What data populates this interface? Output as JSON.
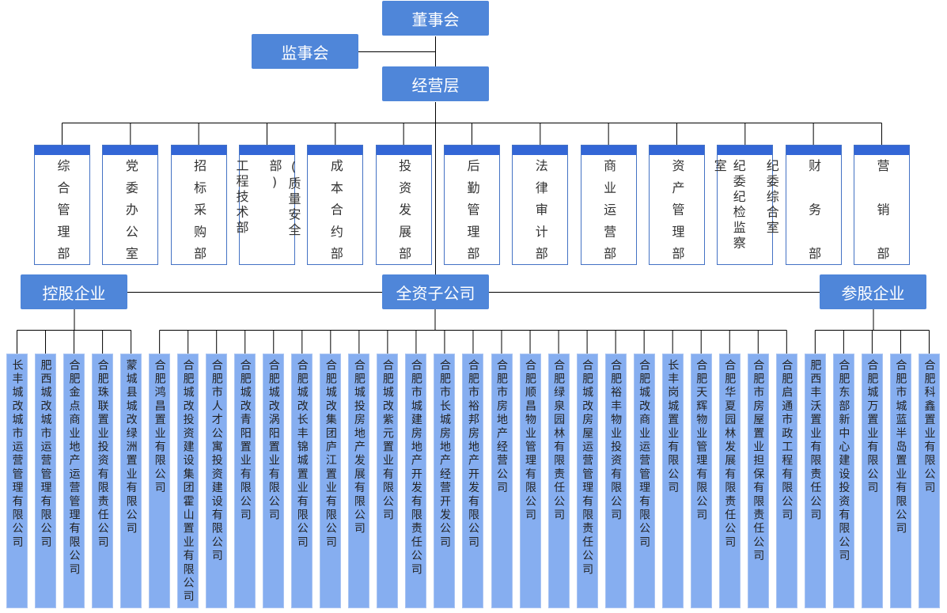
{
  "board": {
    "label": "董事会"
  },
  "supervisors": {
    "label": "监事会"
  },
  "management": {
    "label": "经营层"
  },
  "departments": [
    {
      "columns": [
        "综合管理部"
      ]
    },
    {
      "columns": [
        "党委办公室"
      ]
    },
    {
      "columns": [
        "招标采购部"
      ]
    },
    {
      "columns": [
        "工程技术部",
        "(质量安全部)"
      ]
    },
    {
      "columns": [
        "成本合约部"
      ]
    },
    {
      "columns": [
        "投资发展部"
      ]
    },
    {
      "columns": [
        "后勤管理部"
      ]
    },
    {
      "columns": [
        "法律审计部"
      ]
    },
    {
      "columns": [
        "商业运营部"
      ]
    },
    {
      "columns": [
        "资产管理部"
      ]
    },
    {
      "columns": [
        "纪委纪检监察室",
        "纪委综合室"
      ]
    },
    {
      "columns": [
        "财务部"
      ]
    },
    {
      "columns": [
        "营销部"
      ]
    }
  ],
  "holding_groups": [
    {
      "label": "控股企业",
      "companies": [
        "长丰城改城市运营管理有限公司",
        "肥西城改城市运营管理有限公司",
        "合肥金点商业地产运营管理有限公司",
        "合肥珠联置业投资有限责任公司",
        "蒙城县城改绿洲置业有限公司"
      ]
    },
    {
      "label": "全资子公司",
      "companies": [
        "合肥鸿昌置业有限公司",
        "合肥城改投资建设集团霍山置业有限公司",
        "合肥市人才公寓投资建设有限公司",
        "合肥城改青阳置业有限公司",
        "合肥城改涡阳置业有限公司",
        "合肥城改长丰锦城置业有限公司",
        "合肥城改集团庐江置业有限公司",
        "合肥城投房地产发展有限公司",
        "合肥城改紫元置业有限公司",
        "合肥市城建房地产开发有限责任公司",
        "合肥市长城房地产经营开发公司",
        "合肥市裕邦房地产开发有限公司",
        "合肥市房地产经营公司",
        "合肥顺昌物业管理有限公司",
        "合肥绿泉园林有限责任公司",
        "合肥城改房屋运营管理有限责任公司",
        "合肥裕丰物业投资有限公司",
        "合肥城改商业运营管理有限公司",
        "长丰岗城置业有限公司",
        "合肥天辉物业管理有限公司",
        "合肥华夏园林发展有限责任公司",
        "合肥市房屋置业担保有限责任公司",
        "合肥启通市政工程有限公司"
      ]
    },
    {
      "label": "参股企业",
      "companies": [
        "肥西丰沃置业有限责任公司",
        "合肥东部新中心建设投资有限公司",
        "合肥城万置业有限公司",
        "合肥市城蓝半岛置业有限公司",
        "合肥科鑫置业有限公司"
      ]
    }
  ],
  "colors": {
    "top_box": "#4f86d9",
    "dept_bar": "#3366d6",
    "dept_border": "#4472c4",
    "company_box": "#86aef0",
    "line": "#000000"
  }
}
